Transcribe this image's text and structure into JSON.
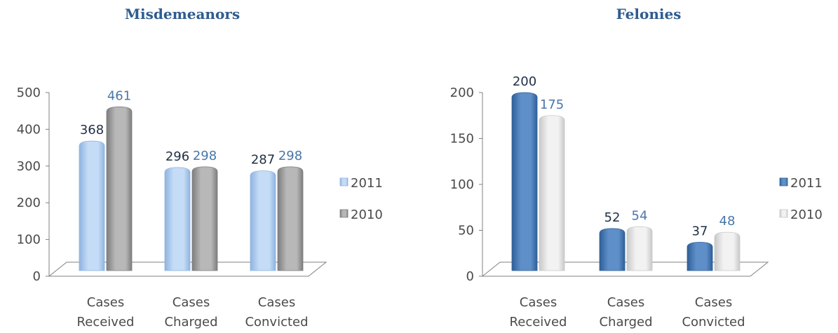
{
  "chart_data": [
    {
      "type": "bar",
      "title": "Misdemeanors",
      "categories": [
        [
          "Cases",
          "Received"
        ],
        [
          "Cases",
          "Charged"
        ],
        [
          "Cases",
          "Convicted"
        ]
      ],
      "series": [
        {
          "name": "2011",
          "values": [
            368,
            296,
            287
          ],
          "color": "#c5dcf7"
        },
        {
          "name": "2010",
          "values": [
            461,
            298,
            298
          ],
          "color": "#b8b8b8"
        }
      ],
      "ylim": [
        0,
        500
      ],
      "yticks": [
        0,
        100,
        200,
        300,
        400,
        500
      ],
      "legend": "right",
      "grid": false
    },
    {
      "type": "bar",
      "title": "Felonies",
      "categories": [
        [
          "Cases",
          "Received"
        ],
        [
          "Cases",
          "Charged"
        ],
        [
          "Cases",
          "Convicted"
        ]
      ],
      "series": [
        {
          "name": "2011",
          "values": [
            200,
            52,
            37
          ],
          "color": "#5f8fc8"
        },
        {
          "name": "2010",
          "values": [
            175,
            54,
            48
          ],
          "color": "#f2f2f2"
        }
      ],
      "ylim": [
        0,
        200
      ],
      "yticks": [
        0,
        50,
        100,
        150,
        200
      ],
      "legend": "right",
      "grid": false
    }
  ]
}
